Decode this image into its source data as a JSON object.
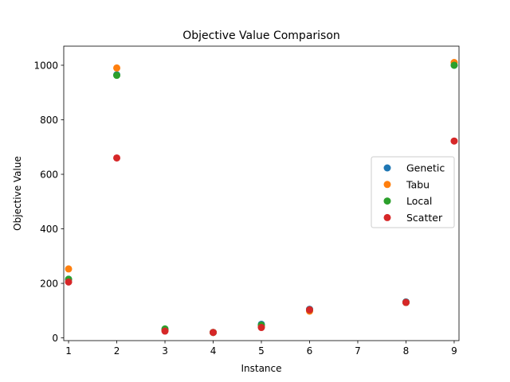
{
  "chart_data": {
    "type": "scatter",
    "title": "Objective Value Comparison",
    "xlabel": "Instance",
    "ylabel": "Objective Value",
    "xlim": [
      0.9,
      9.1
    ],
    "ylim": [
      -10,
      1070
    ],
    "xticks": [
      1,
      2,
      3,
      4,
      5,
      6,
      7,
      8,
      9
    ],
    "yticks": [
      0,
      200,
      400,
      600,
      800,
      1000
    ],
    "grid": false,
    "legend_position": "center-right",
    "series": [
      {
        "name": "Genetic",
        "color": "#1f77b4",
        "points": [
          [
            1,
            215
          ],
          [
            2,
            965
          ],
          [
            3,
            30
          ],
          [
            4,
            20
          ],
          [
            5,
            50
          ],
          [
            6,
            105
          ],
          [
            8,
            132
          ],
          [
            9,
            1000
          ]
        ]
      },
      {
        "name": "Tabu",
        "color": "#ff7f0e",
        "points": [
          [
            1,
            253
          ],
          [
            2,
            990
          ],
          [
            3,
            28
          ],
          [
            4,
            20
          ],
          [
            5,
            42
          ],
          [
            6,
            98
          ],
          [
            8,
            130
          ],
          [
            9,
            1010
          ]
        ]
      },
      {
        "name": "Local",
        "color": "#2ca02c",
        "points": [
          [
            1,
            215
          ],
          [
            2,
            963
          ],
          [
            3,
            33
          ],
          [
            4,
            20
          ],
          [
            5,
            47
          ],
          [
            6,
            103
          ],
          [
            8,
            130
          ],
          [
            9,
            1000
          ]
        ]
      },
      {
        "name": "Scatter",
        "color": "#d62728",
        "points": [
          [
            1,
            205
          ],
          [
            2,
            660
          ],
          [
            3,
            25
          ],
          [
            4,
            20
          ],
          [
            5,
            38
          ],
          [
            6,
            103
          ],
          [
            8,
            130
          ],
          [
            9,
            722
          ]
        ]
      }
    ]
  }
}
